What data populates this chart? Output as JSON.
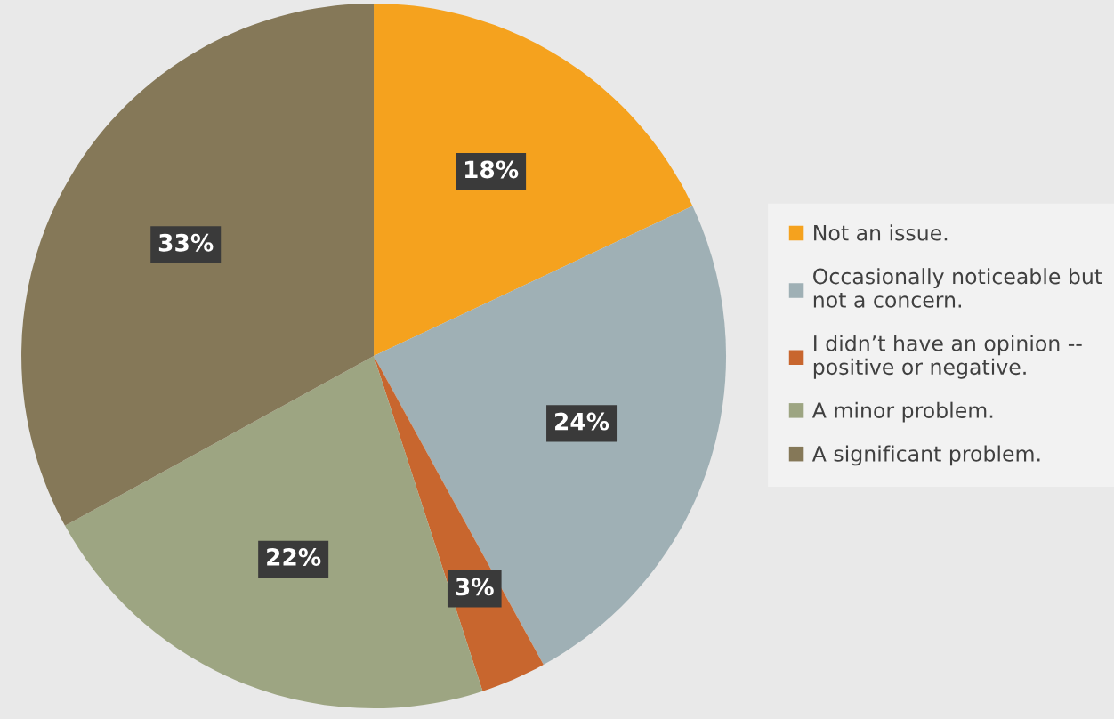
{
  "chart_data": {
    "type": "pie",
    "categories": [
      "Not an issue.",
      "Occasionally noticeable but\nnot a concern.",
      "I didn’t have an opinion --\npositive or negative.",
      "A minor problem.",
      "A significant problem."
    ],
    "values": [
      18,
      24,
      3,
      22,
      33
    ],
    "value_labels": [
      "18%",
      "24%",
      "3%",
      "22%",
      "33%"
    ],
    "colors": [
      "#f5a21e",
      "#9fb0b5",
      "#c8662e",
      "#9da582",
      "#857858"
    ],
    "legend": "right"
  }
}
